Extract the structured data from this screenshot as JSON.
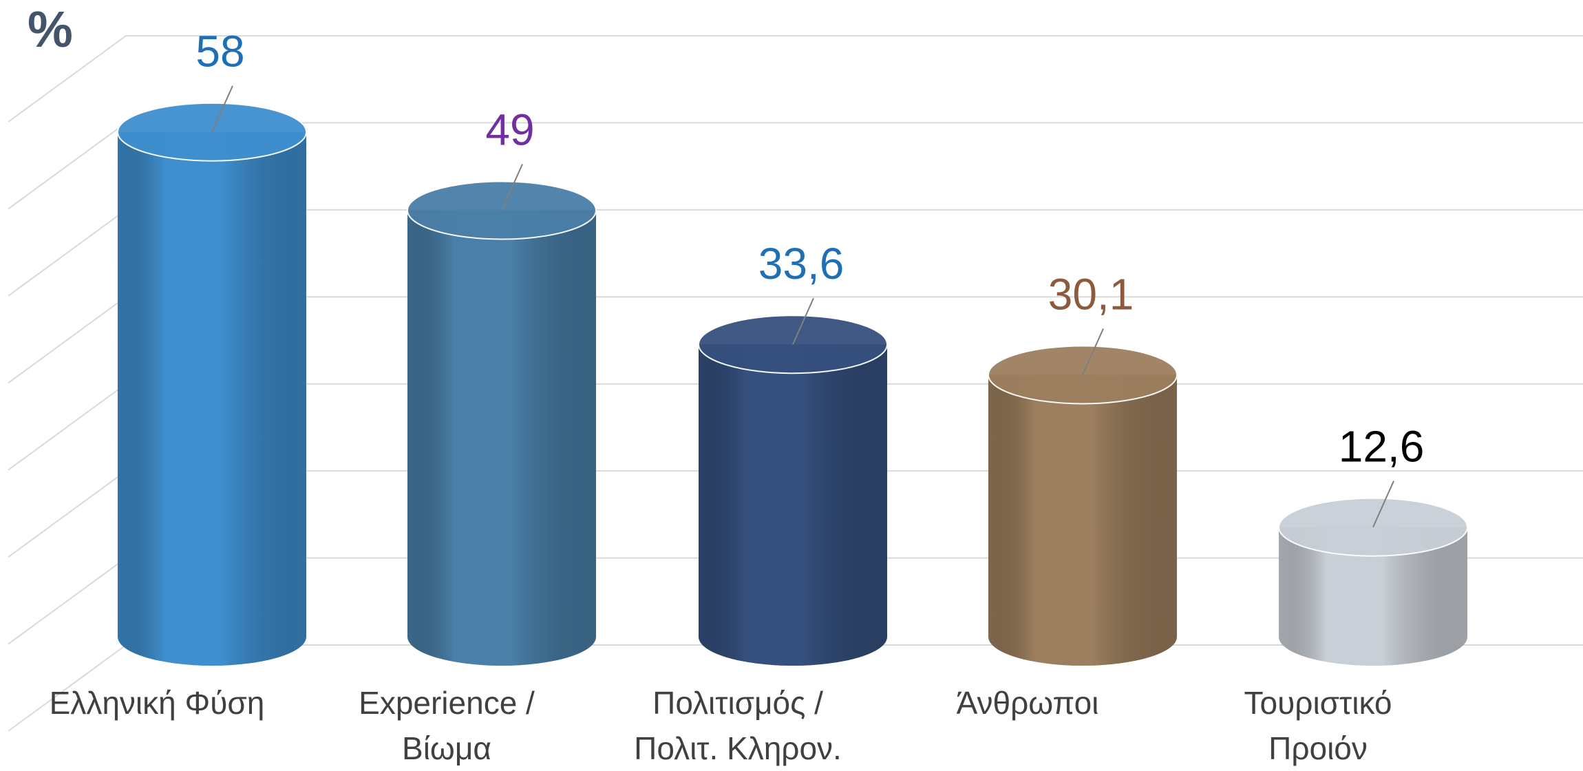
{
  "chart_data": {
    "type": "cylinder",
    "y_label": "%",
    "categories": [
      "Ελληνική Φύση",
      "Experience /\nΒίωμα",
      "Πολιτισμός /\nΠολιτ. Κληρον.",
      "Άνθρωποι",
      "Τουριστικό\nΠροιόν"
    ],
    "values": [
      58,
      49,
      33.6,
      30.1,
      12.6
    ],
    "value_labels": [
      "58",
      "49",
      "33,6",
      "30,1",
      "12,6"
    ],
    "colors": [
      "#3f8fcf",
      "#4a7fa8",
      "#35507e",
      "#9c7f5e",
      "#c9cfd6"
    ],
    "label_colors": [
      "#1f6fb5",
      "#7030a0",
      "#1f6fb5",
      "#8c5a3c",
      "#000000"
    ],
    "ylim": [
      0,
      70
    ],
    "yticks": [
      0,
      10,
      20,
      30,
      40,
      50,
      60,
      70
    ],
    "grid": true
  }
}
